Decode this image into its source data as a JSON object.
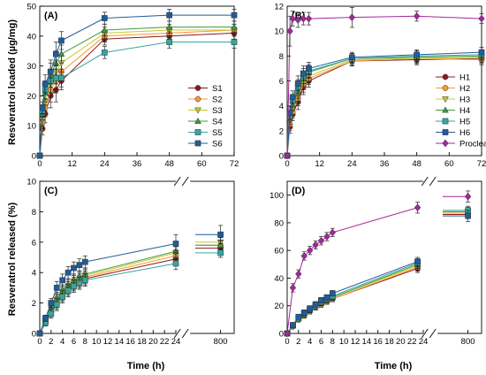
{
  "figure": {
    "ylabel_top": "Resveratrol loaded (µg/mg)",
    "ylabel_bottom": "Resveratrol released (%)",
    "xlabel": "Time (h)"
  },
  "colors": {
    "S1": "#8b1a1a",
    "S2": "#f79a32",
    "S3": "#c8c832",
    "S4": "#3f9a3f",
    "S5": "#35a6a0",
    "S6": "#1f5c99",
    "H1": "#8b1a1a",
    "H2": "#f79a32",
    "H3": "#c8c832",
    "H4": "#3f9a3f",
    "H5": "#35a6a0",
    "H6": "#1f5c99",
    "Proclear": "#a3279a"
  },
  "chart_data": [
    {
      "panel": "A",
      "label": "(A)",
      "type": "line",
      "xlim": [
        0,
        72
      ],
      "ylim": [
        0,
        50
      ],
      "xticks": [
        0,
        12,
        24,
        36,
        48,
        60,
        72
      ],
      "yticks": [
        0,
        10,
        20,
        30,
        40,
        50
      ],
      "legend": "bottom-right",
      "x": [
        0,
        1,
        2,
        4,
        6,
        8,
        24,
        48,
        72
      ],
      "series": [
        {
          "name": "S1",
          "marker": "circle",
          "values": [
            0,
            9,
            14,
            20,
            22,
            25,
            39,
            40,
            41
          ],
          "err": [
            0,
            2,
            3,
            4,
            4,
            3,
            2,
            2,
            2
          ]
        },
        {
          "name": "S2",
          "marker": "circle",
          "values": [
            0,
            11,
            16,
            22,
            25,
            28,
            40,
            41,
            42
          ],
          "err": [
            0,
            2,
            3,
            4,
            4,
            3,
            2,
            2,
            2
          ]
        },
        {
          "name": "S3",
          "marker": "triangle-down",
          "values": [
            0,
            12,
            18,
            24,
            28,
            31,
            41,
            42,
            42
          ],
          "err": [
            0,
            2,
            3,
            4,
            4,
            3,
            2,
            2,
            2
          ]
        },
        {
          "name": "S4",
          "marker": "triangle-up",
          "values": [
            0,
            14,
            21,
            27,
            31,
            34,
            42,
            43,
            43
          ],
          "err": [
            0,
            2,
            3,
            4,
            4,
            3,
            2,
            2,
            2
          ]
        },
        {
          "name": "S5",
          "marker": "square",
          "values": [
            0,
            15,
            22,
            25,
            26,
            26,
            34.5,
            38,
            38
          ],
          "err": [
            0,
            2,
            3,
            4,
            4,
            3,
            2,
            2,
            2
          ]
        },
        {
          "name": "S6",
          "marker": "square",
          "values": [
            0,
            16,
            24,
            28,
            34,
            38.5,
            46,
            47,
            47
          ],
          "err": [
            0,
            2,
            3,
            4,
            4,
            3,
            2,
            2,
            2
          ]
        }
      ]
    },
    {
      "panel": "B",
      "label": "(B)",
      "type": "line",
      "xlim": [
        0,
        72
      ],
      "ylim": [
        0,
        12
      ],
      "xticks": [
        0,
        12,
        24,
        36,
        48,
        60,
        72
      ],
      "yticks": [
        0,
        2,
        4,
        6,
        8,
        10,
        12
      ],
      "legend": "bottom-right",
      "x": [
        0,
        1,
        2,
        4,
        6,
        8,
        24,
        48,
        72
      ],
      "series": [
        {
          "name": "H1",
          "marker": "circle",
          "values": [
            0,
            2.3,
            3.3,
            4.3,
            5.5,
            6.0,
            7.6,
            7.7,
            7.8
          ],
          "err": [
            0,
            0.5,
            0.5,
            0.6,
            0.6,
            0.5,
            0.4,
            0.4,
            0.4
          ]
        },
        {
          "name": "H2",
          "marker": "circle",
          "values": [
            0,
            2.5,
            3.5,
            4.6,
            5.7,
            6.2,
            7.6,
            7.8,
            7.7
          ],
          "err": [
            0,
            0.5,
            0.5,
            0.6,
            0.6,
            0.5,
            0.4,
            0.4,
            0.4
          ]
        },
        {
          "name": "H3",
          "marker": "triangle-down",
          "values": [
            0,
            2.8,
            3.8,
            4.9,
            5.9,
            6.4,
            7.7,
            7.8,
            7.9
          ],
          "err": [
            0,
            0.5,
            0.5,
            0.6,
            0.6,
            0.5,
            0.4,
            0.4,
            0.4
          ]
        },
        {
          "name": "H4",
          "marker": "triangle-up",
          "values": [
            0,
            3.0,
            4.1,
            5.2,
            6.2,
            6.7,
            7.8,
            7.9,
            8.0
          ],
          "err": [
            0,
            0.5,
            0.5,
            0.6,
            0.6,
            0.5,
            0.4,
            0.4,
            0.4
          ]
        },
        {
          "name": "H5",
          "marker": "square",
          "values": [
            0,
            3.2,
            4.4,
            5.5,
            6.4,
            6.8,
            7.8,
            8.0,
            8.1
          ],
          "err": [
            0,
            0.5,
            0.5,
            0.6,
            0.6,
            0.5,
            0.4,
            0.4,
            0.4
          ]
        },
        {
          "name": "H6",
          "marker": "square",
          "values": [
            0,
            3.4,
            4.7,
            5.8,
            6.6,
            7.0,
            7.9,
            8.1,
            8.3
          ],
          "err": [
            0,
            0.5,
            0.5,
            0.6,
            0.6,
            0.5,
            0.4,
            0.4,
            0.4
          ]
        },
        {
          "name": "Proclear",
          "legend_label": "Proclear",
          "legend_sup": "®",
          "marker": "diamond",
          "values": [
            0,
            10,
            11,
            10.9,
            11,
            11,
            11.1,
            11.2,
            11
          ],
          "err": [
            0,
            1.2,
            0.6,
            0.6,
            0.5,
            0.5,
            0.8,
            0.4,
            0.4
          ]
        }
      ]
    },
    {
      "panel": "C",
      "label": "(C)",
      "type": "line",
      "xlim": [
        0,
        24
      ],
      "x_break": {
        "after": 24,
        "resume": 800
      },
      "ylim": [
        0,
        10
      ],
      "xticks": [
        0,
        2,
        4,
        6,
        8,
        10,
        12,
        14,
        16,
        18,
        20,
        22,
        24,
        800
      ],
      "yticks": [
        0,
        2,
        4,
        6,
        8,
        10
      ],
      "x": [
        0,
        1,
        2,
        3,
        4,
        5,
        6,
        7,
        8,
        24,
        800
      ],
      "series": [
        {
          "name": "S1",
          "marker": "circle",
          "values": [
            0,
            0.7,
            1.4,
            2.0,
            2.5,
            2.9,
            3.2,
            3.4,
            3.6,
            4.9,
            5.6
          ],
          "err": [
            0,
            0.2,
            0.3,
            0.4,
            0.4,
            0.4,
            0.4,
            0.4,
            0.4,
            0.4,
            0.3
          ]
        },
        {
          "name": "S2",
          "marker": "circle",
          "values": [
            0,
            0.8,
            1.5,
            2.1,
            2.6,
            3.0,
            3.3,
            3.5,
            3.7,
            5.1,
            5.8
          ],
          "err": [
            0,
            0.2,
            0.3,
            0.4,
            0.4,
            0.4,
            0.4,
            0.4,
            0.4,
            0.4,
            0.3
          ]
        },
        {
          "name": "S3",
          "marker": "triangle-down",
          "values": [
            0,
            0.8,
            1.6,
            2.2,
            2.7,
            3.1,
            3.4,
            3.6,
            3.8,
            5.3,
            6.0
          ],
          "err": [
            0,
            0.2,
            0.3,
            0.4,
            0.4,
            0.4,
            0.4,
            0.4,
            0.4,
            0.4,
            0.3
          ]
        },
        {
          "name": "S4",
          "marker": "triangle-up",
          "values": [
            0,
            0.9,
            1.6,
            2.3,
            2.8,
            3.2,
            3.5,
            3.7,
            3.9,
            5.4,
            5.8
          ],
          "err": [
            0,
            0.2,
            0.3,
            0.4,
            0.4,
            0.4,
            0.4,
            0.4,
            0.4,
            0.4,
            0.3
          ]
        },
        {
          "name": "S5",
          "marker": "square",
          "values": [
            0,
            0.7,
            1.3,
            1.9,
            2.4,
            2.8,
            3.1,
            3.3,
            3.5,
            4.6,
            5.3
          ],
          "err": [
            0,
            0.2,
            0.3,
            0.4,
            0.4,
            0.4,
            0.4,
            0.4,
            0.4,
            0.4,
            0.3
          ]
        },
        {
          "name": "S6",
          "marker": "square",
          "values": [
            0,
            1.0,
            2.0,
            3.0,
            3.5,
            4.0,
            4.3,
            4.5,
            4.7,
            5.9,
            6.5
          ],
          "err": [
            0,
            0.2,
            0.3,
            0.4,
            0.4,
            0.4,
            0.4,
            0.4,
            0.4,
            0.6,
            0.6
          ]
        }
      ]
    },
    {
      "panel": "D",
      "label": "(D)",
      "type": "line",
      "xlim": [
        0,
        24
      ],
      "x_break": {
        "after": 24,
        "resume": 800
      },
      "ylim": [
        0,
        110
      ],
      "xticks": [
        0,
        2,
        4,
        6,
        8,
        10,
        12,
        14,
        16,
        18,
        20,
        22,
        24,
        800
      ],
      "yticks": [
        0,
        20,
        40,
        60,
        80,
        100
      ],
      "x": [
        0,
        1,
        2,
        3,
        4,
        5,
        6,
        7,
        8,
        23,
        800
      ],
      "series": [
        {
          "name": "H1",
          "marker": "circle",
          "values": [
            0,
            5,
            10,
            13,
            16,
            19,
            21,
            23,
            25,
            47,
            86
          ],
          "err": [
            0,
            1,
            1.5,
            2,
            2,
            2,
            2,
            2,
            2,
            3,
            3
          ]
        },
        {
          "name": "H2",
          "marker": "circle",
          "values": [
            0,
            5,
            10,
            13,
            16,
            19,
            21,
            23,
            25,
            48,
            87
          ],
          "err": [
            0,
            1,
            1.5,
            2,
            2,
            2,
            2,
            2,
            2,
            3,
            3
          ]
        },
        {
          "name": "H3",
          "marker": "triangle-down",
          "values": [
            0,
            5,
            10,
            14,
            17,
            19,
            22,
            24,
            26,
            49,
            88
          ],
          "err": [
            0,
            1,
            1.5,
            2,
            2,
            2,
            2,
            2,
            2,
            3,
            3
          ]
        },
        {
          "name": "H4",
          "marker": "triangle-up",
          "values": [
            0,
            5.5,
            11,
            14,
            17,
            20,
            22,
            24,
            26,
            50,
            88
          ],
          "err": [
            0,
            1,
            1.5,
            2,
            2,
            2,
            2,
            2,
            2,
            3,
            3
          ]
        },
        {
          "name": "H5",
          "marker": "square",
          "values": [
            0,
            6,
            11,
            15,
            18,
            20,
            23,
            25,
            27,
            51,
            89
          ],
          "err": [
            0,
            1,
            1.5,
            2,
            2,
            2,
            2,
            2,
            2,
            3,
            3
          ]
        },
        {
          "name": "H6",
          "marker": "square",
          "values": [
            0,
            6,
            12,
            15,
            18,
            21,
            24,
            26,
            29,
            52,
            85
          ],
          "err": [
            0,
            1,
            1.5,
            2,
            2,
            2,
            2,
            2,
            2,
            3,
            4
          ]
        },
        {
          "name": "Proclear",
          "marker": "diamond",
          "values": [
            0,
            33,
            43,
            56,
            60,
            64,
            67,
            70,
            73,
            91,
            99
          ],
          "err": [
            0,
            3,
            3,
            3,
            3,
            3,
            3,
            3,
            3,
            4,
            4
          ]
        }
      ]
    }
  ]
}
